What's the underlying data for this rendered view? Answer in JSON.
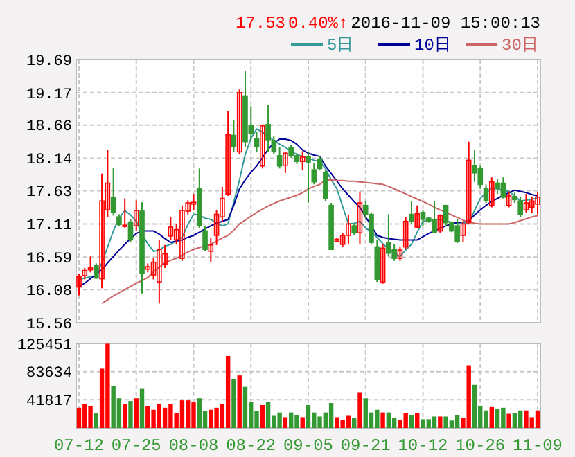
{
  "chart_data": [
    {
      "type": "candlestick",
      "categories": [
        null,
        null,
        null,
        null,
        null,
        null,
        null,
        null,
        null,
        null,
        null,
        null,
        null,
        null,
        null,
        null,
        null,
        null,
        null,
        null,
        null,
        null,
        null,
        null,
        null,
        null,
        null,
        null,
        null,
        null,
        null,
        null,
        null,
        null,
        null,
        null,
        null,
        null,
        null,
        null,
        null,
        null,
        null,
        null,
        null,
        null,
        null,
        null,
        null,
        null,
        null,
        null,
        null,
        null,
        null,
        null,
        null,
        null,
        null,
        null,
        null,
        null,
        null,
        null,
        null,
        null,
        null,
        null,
        null,
        null,
        null,
        null,
        null,
        null,
        null,
        null,
        null,
        null,
        null,
        null,
        null
      ],
      "ohlc": [
        [
          16.12,
          16.33,
          15.99,
          16.28
        ],
        [
          16.3,
          16.42,
          16.24,
          16.38
        ],
        [
          16.39,
          16.6,
          16.35,
          16.42
        ],
        [
          16.46,
          16.49,
          16.25,
          16.26
        ],
        [
          16.25,
          17.9,
          16.1,
          17.47
        ],
        [
          17.33,
          18.27,
          17.22,
          17.75
        ],
        [
          17.53,
          17.99,
          17.24,
          17.29
        ],
        [
          17.22,
          17.26,
          17.07,
          17.1
        ],
        [
          17.07,
          17.51,
          17.05,
          17.09
        ],
        [
          17.14,
          17.18,
          16.82,
          16.86
        ],
        [
          17.08,
          17.48,
          17.0,
          17.32
        ],
        [
          17.31,
          17.45,
          16.02,
          16.33
        ],
        [
          16.4,
          16.49,
          16.35,
          16.44
        ],
        [
          16.31,
          16.57,
          16.24,
          16.51
        ],
        [
          16.2,
          16.86,
          15.86,
          16.71
        ],
        [
          16.48,
          16.78,
          16.42,
          16.64
        ],
        [
          16.92,
          17.22,
          16.86,
          17.06
        ],
        [
          16.86,
          17.11,
          16.79,
          17.02
        ],
        [
          16.57,
          17.4,
          16.53,
          17.32
        ],
        [
          17.31,
          17.48,
          17.26,
          17.44
        ],
        [
          17.42,
          17.58,
          17.33,
          17.45
        ],
        [
          17.67,
          17.98,
          17.04,
          17.08
        ],
        [
          17.0,
          17.08,
          16.68,
          16.71
        ],
        [
          16.68,
          16.89,
          16.51,
          16.78
        ],
        [
          16.93,
          17.33,
          16.78,
          17.26
        ],
        [
          17.22,
          17.69,
          17.15,
          17.51
        ],
        [
          17.58,
          18.88,
          17.55,
          18.51
        ],
        [
          18.5,
          18.74,
          18.24,
          18.32
        ],
        [
          18.24,
          19.22,
          18.2,
          19.17
        ],
        [
          19.12,
          19.51,
          18.31,
          18.4
        ],
        [
          18.65,
          18.96,
          18.42,
          18.53
        ],
        [
          18.45,
          18.56,
          18.24,
          18.32
        ],
        [
          18.02,
          18.67,
          17.98,
          18.65
        ],
        [
          18.67,
          18.98,
          18.24,
          18.43
        ],
        [
          18.42,
          18.49,
          18.2,
          18.24
        ],
        [
          18.18,
          18.31,
          17.98,
          18.02
        ],
        [
          18.03,
          18.24,
          17.91,
          18.22
        ],
        [
          18.31,
          18.35,
          18.15,
          18.18
        ],
        [
          18.18,
          18.22,
          18.05,
          18.09
        ],
        [
          18.09,
          18.25,
          17.95,
          18.16
        ],
        [
          18.16,
          18.24,
          17.44,
          18.08
        ],
        [
          17.96,
          18.06,
          17.73,
          17.77
        ],
        [
          18.13,
          18.17,
          17.95,
          17.98
        ],
        [
          17.91,
          17.95,
          17.47,
          17.51
        ],
        [
          17.4,
          17.44,
          16.7,
          16.71
        ],
        [
          16.84,
          16.89,
          16.82,
          16.87
        ],
        [
          16.79,
          16.97,
          16.75,
          16.93
        ],
        [
          16.93,
          17.26,
          16.79,
          17.11
        ],
        [
          17.08,
          17.11,
          16.93,
          16.97
        ],
        [
          16.97,
          17.62,
          16.79,
          17.44
        ],
        [
          17.4,
          17.47,
          17.18,
          17.26
        ],
        [
          17.26,
          17.29,
          16.79,
          16.82
        ],
        [
          16.75,
          16.86,
          16.2,
          16.24
        ],
        [
          16.2,
          16.79,
          16.17,
          16.73
        ],
        [
          16.82,
          17.26,
          16.6,
          16.65
        ],
        [
          16.71,
          16.79,
          16.53,
          16.57
        ],
        [
          16.57,
          16.75,
          16.53,
          16.7
        ],
        [
          16.75,
          17.22,
          16.71,
          17.15
        ],
        [
          17.26,
          17.47,
          17.11,
          17.15
        ],
        [
          17.06,
          17.4,
          17.04,
          17.27
        ],
        [
          17.29,
          17.33,
          17.08,
          17.18
        ],
        [
          17.2,
          17.22,
          17.13,
          17.15
        ],
        [
          17.18,
          17.47,
          16.97,
          16.98
        ],
        [
          17.0,
          17.26,
          16.97,
          17.24
        ],
        [
          17.4,
          17.4,
          17.08,
          17.13
        ],
        [
          17.13,
          17.15,
          16.98,
          17.0
        ],
        [
          17.08,
          17.18,
          16.81,
          16.84
        ],
        [
          16.93,
          17.15,
          16.82,
          17.11
        ],
        [
          17.13,
          18.4,
          17.1,
          18.11
        ],
        [
          18.03,
          18.27,
          17.77,
          17.91
        ],
        [
          17.98,
          18.02,
          17.66,
          17.73
        ],
        [
          17.67,
          17.73,
          17.44,
          17.47
        ],
        [
          17.4,
          17.84,
          17.37,
          17.77
        ],
        [
          17.75,
          17.82,
          17.58,
          17.67
        ],
        [
          17.75,
          17.84,
          17.51,
          17.53
        ],
        [
          17.4,
          17.62,
          17.37,
          17.55
        ],
        [
          17.54,
          17.6,
          17.44,
          17.49
        ],
        [
          17.47,
          17.54,
          17.22,
          17.26
        ],
        [
          17.33,
          17.58,
          17.29,
          17.44
        ],
        [
          17.37,
          17.54,
          17.28,
          17.47
        ],
        [
          17.42,
          17.6,
          17.26,
          17.53
        ]
      ],
      "colors": [
        "#ff0000",
        "#ff0000",
        "#ff0000",
        "#339933",
        "#ff0000",
        "#ff0000",
        "#339933",
        "#339933",
        "#ff0000",
        "#339933",
        "#ff0000",
        "#339933",
        "#ff0000",
        "#ff0000",
        "#ff0000",
        "#ff0000",
        "#ff0000",
        "#ff0000",
        "#ff0000",
        "#ff0000",
        "#ff0000",
        "#339933",
        "#339933",
        "#ff0000",
        "#ff0000",
        "#ff0000",
        "#ff0000",
        "#339933",
        "#ff0000",
        "#339933",
        "#339933",
        "#339933",
        "#ff0000",
        "#339933",
        "#339933",
        "#339933",
        "#ff0000",
        "#339933",
        "#339933",
        "#ff0000",
        "#339933",
        "#339933",
        "#339933",
        "#339933",
        "#339933",
        "#ff0000",
        "#ff0000",
        "#ff0000",
        "#339933",
        "#ff0000",
        "#339933",
        "#339933",
        "#339933",
        "#ff0000",
        "#339933",
        "#339933",
        "#ff0000",
        "#ff0000",
        "#339933",
        "#ff0000",
        "#339933",
        "#339933",
        "#339933",
        "#ff0000",
        "#339933",
        "#339933",
        "#339933",
        "#ff0000",
        "#ff0000",
        "#339933",
        "#339933",
        "#339933",
        "#ff0000",
        "#339933",
        "#339933",
        "#ff0000",
        "#339933",
        "#339933",
        "#ff0000",
        "#ff0000",
        "#ff0000"
      ],
      "series": [
        {
          "type": "line",
          "name": "5日",
          "color": "#339999",
          "values": [
            16.24,
            16.26,
            16.28,
            16.3,
            16.5,
            16.75,
            17.0,
            17.2,
            17.32,
            17.25,
            17.15,
            16.95,
            16.8,
            16.68,
            16.7,
            16.76,
            16.79,
            16.85,
            16.9,
            17.1,
            17.26,
            17.25,
            17.2,
            17.18,
            17.12,
            17.08,
            17.11,
            17.45,
            17.8,
            18.2,
            18.45,
            18.6,
            18.55,
            18.48,
            18.42,
            18.36,
            18.31,
            18.25,
            18.2,
            18.17,
            18.14,
            18.11,
            18.09,
            17.98,
            17.8,
            17.66,
            17.38,
            17.11,
            17.12,
            17.15,
            17.05,
            16.98,
            16.9,
            16.8,
            16.72,
            16.65,
            16.6,
            16.7,
            16.79,
            16.98,
            17.15,
            17.17,
            17.18,
            17.18,
            17.16,
            17.13,
            17.11,
            17.12,
            17.13,
            17.32,
            17.51,
            17.6,
            17.67,
            17.66,
            17.64,
            17.62,
            17.55,
            17.47,
            17.48,
            17.5,
            17.51
          ]
        },
        {
          "type": "line",
          "name": "10日",
          "color": "#000099",
          "values": [
            16.12,
            16.18,
            16.25,
            16.32,
            16.39,
            16.5,
            16.6,
            16.7,
            16.79,
            16.88,
            16.96,
            17.0,
            17.0,
            17.0,
            16.95,
            16.88,
            16.82,
            16.84,
            16.86,
            16.9,
            16.93,
            16.98,
            17.03,
            17.08,
            17.12,
            17.15,
            17.18,
            17.4,
            17.66,
            17.8,
            17.92,
            18.02,
            18.15,
            18.28,
            18.38,
            18.44,
            18.44,
            18.42,
            18.36,
            18.27,
            18.22,
            18.19,
            18.17,
            18.02,
            17.9,
            17.78,
            17.66,
            17.56,
            17.46,
            17.37,
            17.22,
            17.08,
            16.93,
            16.9,
            16.88,
            16.87,
            16.86,
            16.86,
            16.86,
            16.86,
            16.91,
            16.96,
            17.0,
            17.04,
            17.08,
            17.11,
            17.13,
            17.14,
            17.16,
            17.25,
            17.33,
            17.4,
            17.46,
            17.51,
            17.56,
            17.6,
            17.64,
            17.62,
            17.6,
            17.57,
            17.55
          ]
        },
        {
          "type": "line",
          "name": "30日",
          "color": "#cc6666",
          "values": [
            null,
            null,
            null,
            null,
            15.86,
            15.92,
            15.98,
            16.03,
            16.08,
            16.13,
            16.18,
            16.22,
            16.27,
            16.36,
            16.43,
            16.5,
            16.54,
            16.57,
            16.62,
            16.67,
            16.71,
            16.74,
            16.77,
            16.79,
            16.84,
            16.89,
            16.93,
            17.01,
            17.11,
            17.17,
            17.23,
            17.29,
            17.34,
            17.39,
            17.43,
            17.47,
            17.5,
            17.53,
            17.56,
            17.6,
            17.66,
            17.7,
            17.73,
            17.8,
            17.8,
            17.79,
            17.79,
            17.78,
            17.78,
            17.77,
            17.76,
            17.75,
            17.74,
            17.73,
            17.7,
            17.66,
            17.62,
            17.58,
            17.54,
            17.5,
            17.46,
            17.42,
            17.37,
            17.33,
            17.29,
            17.25,
            17.21,
            17.17,
            17.14,
            17.12,
            17.11,
            17.11,
            17.11,
            17.11,
            17.11,
            17.11,
            17.13,
            17.16,
            17.19,
            17.22,
            17.24
          ]
        }
      ],
      "ylim": [
        15.56,
        19.69
      ],
      "yticks": [
        15.56,
        16.08,
        16.59,
        17.11,
        17.63,
        18.14,
        18.66,
        19.17,
        19.69
      ],
      "grid": true,
      "legend": "top right",
      "tick_labels": "y",
      "annotations": [
        "17.53",
        "0.40%↑",
        "2016-11-09 15:00:13"
      ]
    },
    {
      "type": "bar",
      "categories": [
        "07-12",
        null,
        null,
        null,
        null,
        null,
        null,
        null,
        null,
        null,
        "07-25",
        null,
        null,
        null,
        null,
        null,
        null,
        null,
        null,
        null,
        "08-08",
        null,
        null,
        null,
        null,
        null,
        null,
        null,
        null,
        null,
        "08-22",
        null,
        null,
        null,
        null,
        null,
        null,
        null,
        null,
        null,
        "09-05",
        null,
        null,
        null,
        null,
        null,
        null,
        null,
        null,
        null,
        "09-21",
        null,
        null,
        null,
        null,
        null,
        null,
        null,
        null,
        null,
        "10-12",
        null,
        null,
        null,
        null,
        null,
        null,
        null,
        null,
        null,
        "10-26",
        null,
        null,
        null,
        null,
        null,
        null,
        null,
        null,
        null,
        "11-09"
      ],
      "values": [
        30000,
        35000,
        32000,
        22000,
        88000,
        125000,
        62000,
        44000,
        36000,
        40000,
        44000,
        58000,
        32000,
        27000,
        36000,
        30000,
        35000,
        22000,
        41000,
        41000,
        38000,
        44000,
        25000,
        27000,
        30000,
        36000,
        107000,
        72000,
        78000,
        61000,
        39000,
        25000,
        34000,
        39000,
        18000,
        23000,
        16000,
        23000,
        19000,
        16000,
        34000,
        23000,
        17000,
        23000,
        37000,
        16000,
        12000,
        18000,
        15000,
        53000,
        44000,
        23000,
        27000,
        23000,
        23000,
        15000,
        12000,
        22000,
        19000,
        22000,
        13000,
        13000,
        17000,
        17000,
        17000,
        11000,
        19000,
        15000,
        93000,
        64000,
        33000,
        26000,
        31000,
        28000,
        30000,
        21000,
        22000,
        26000,
        26000,
        16000,
        26000
      ],
      "colors": [
        "#ff0000",
        "#ff0000",
        "#ff0000",
        "#339933",
        "#ff0000",
        "#ff0000",
        "#339933",
        "#339933",
        "#ff0000",
        "#339933",
        "#ff0000",
        "#339933",
        "#ff0000",
        "#ff0000",
        "#ff0000",
        "#ff0000",
        "#ff0000",
        "#ff0000",
        "#ff0000",
        "#ff0000",
        "#ff0000",
        "#339933",
        "#339933",
        "#ff0000",
        "#ff0000",
        "#ff0000",
        "#ff0000",
        "#339933",
        "#ff0000",
        "#339933",
        "#339933",
        "#339933",
        "#ff0000",
        "#339933",
        "#339933",
        "#339933",
        "#ff0000",
        "#339933",
        "#339933",
        "#ff0000",
        "#339933",
        "#339933",
        "#339933",
        "#339933",
        "#339933",
        "#ff0000",
        "#ff0000",
        "#ff0000",
        "#339933",
        "#ff0000",
        "#339933",
        "#339933",
        "#339933",
        "#ff0000",
        "#339933",
        "#339933",
        "#ff0000",
        "#ff0000",
        "#339933",
        "#ff0000",
        "#339933",
        "#339933",
        "#339933",
        "#ff0000",
        "#339933",
        "#339933",
        "#339933",
        "#ff0000",
        "#ff0000",
        "#339933",
        "#339933",
        "#339933",
        "#ff0000",
        "#339933",
        "#339933",
        "#ff0000",
        "#339933",
        "#339933",
        "#ff0000",
        "#ff0000",
        "#ff0000"
      ],
      "ylim": [
        0,
        125451
      ],
      "yticks": [
        41817,
        83634,
        125451
      ],
      "grid": true
    }
  ]
}
